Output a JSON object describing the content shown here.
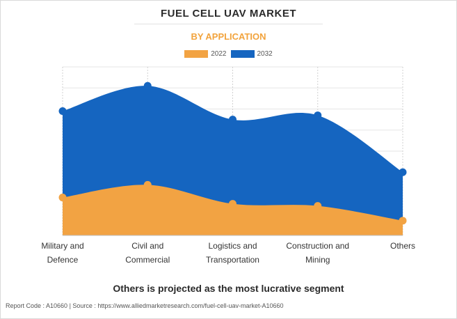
{
  "header": {
    "title": "FUEL CELL UAV MARKET",
    "subtitle": "BY APPLICATION"
  },
  "colors": {
    "series_2022": "#f2a343",
    "series_2032": "#1565c0",
    "subtitle": "#f2a33c"
  },
  "chart_data": {
    "type": "area",
    "categories": [
      [
        "Military and",
        "Defence"
      ],
      [
        "Civil and",
        "Commercial"
      ],
      [
        "Logistics and",
        "Transportation"
      ],
      [
        "Construction and",
        "Mining"
      ],
      [
        "Others"
      ]
    ],
    "series": [
      {
        "name": "2032",
        "values": [
          59,
          71,
          55,
          57,
          30
        ],
        "color": "#1565c0"
      },
      {
        "name": "2022",
        "values": [
          18,
          24,
          15,
          14,
          7
        ],
        "color": "#f2a343"
      }
    ],
    "ylim": [
      0,
      80
    ],
    "grid": true,
    "stacked": false,
    "legend": "top-center",
    "xlabel": "",
    "ylabel": ""
  },
  "footer": {
    "headline": "Others is projected as the most lucrative segment",
    "source": "Report Code : A10660  |  Source : https://www.alliedmarketresearch.com/fuel-cell-uav-market-A10660"
  }
}
